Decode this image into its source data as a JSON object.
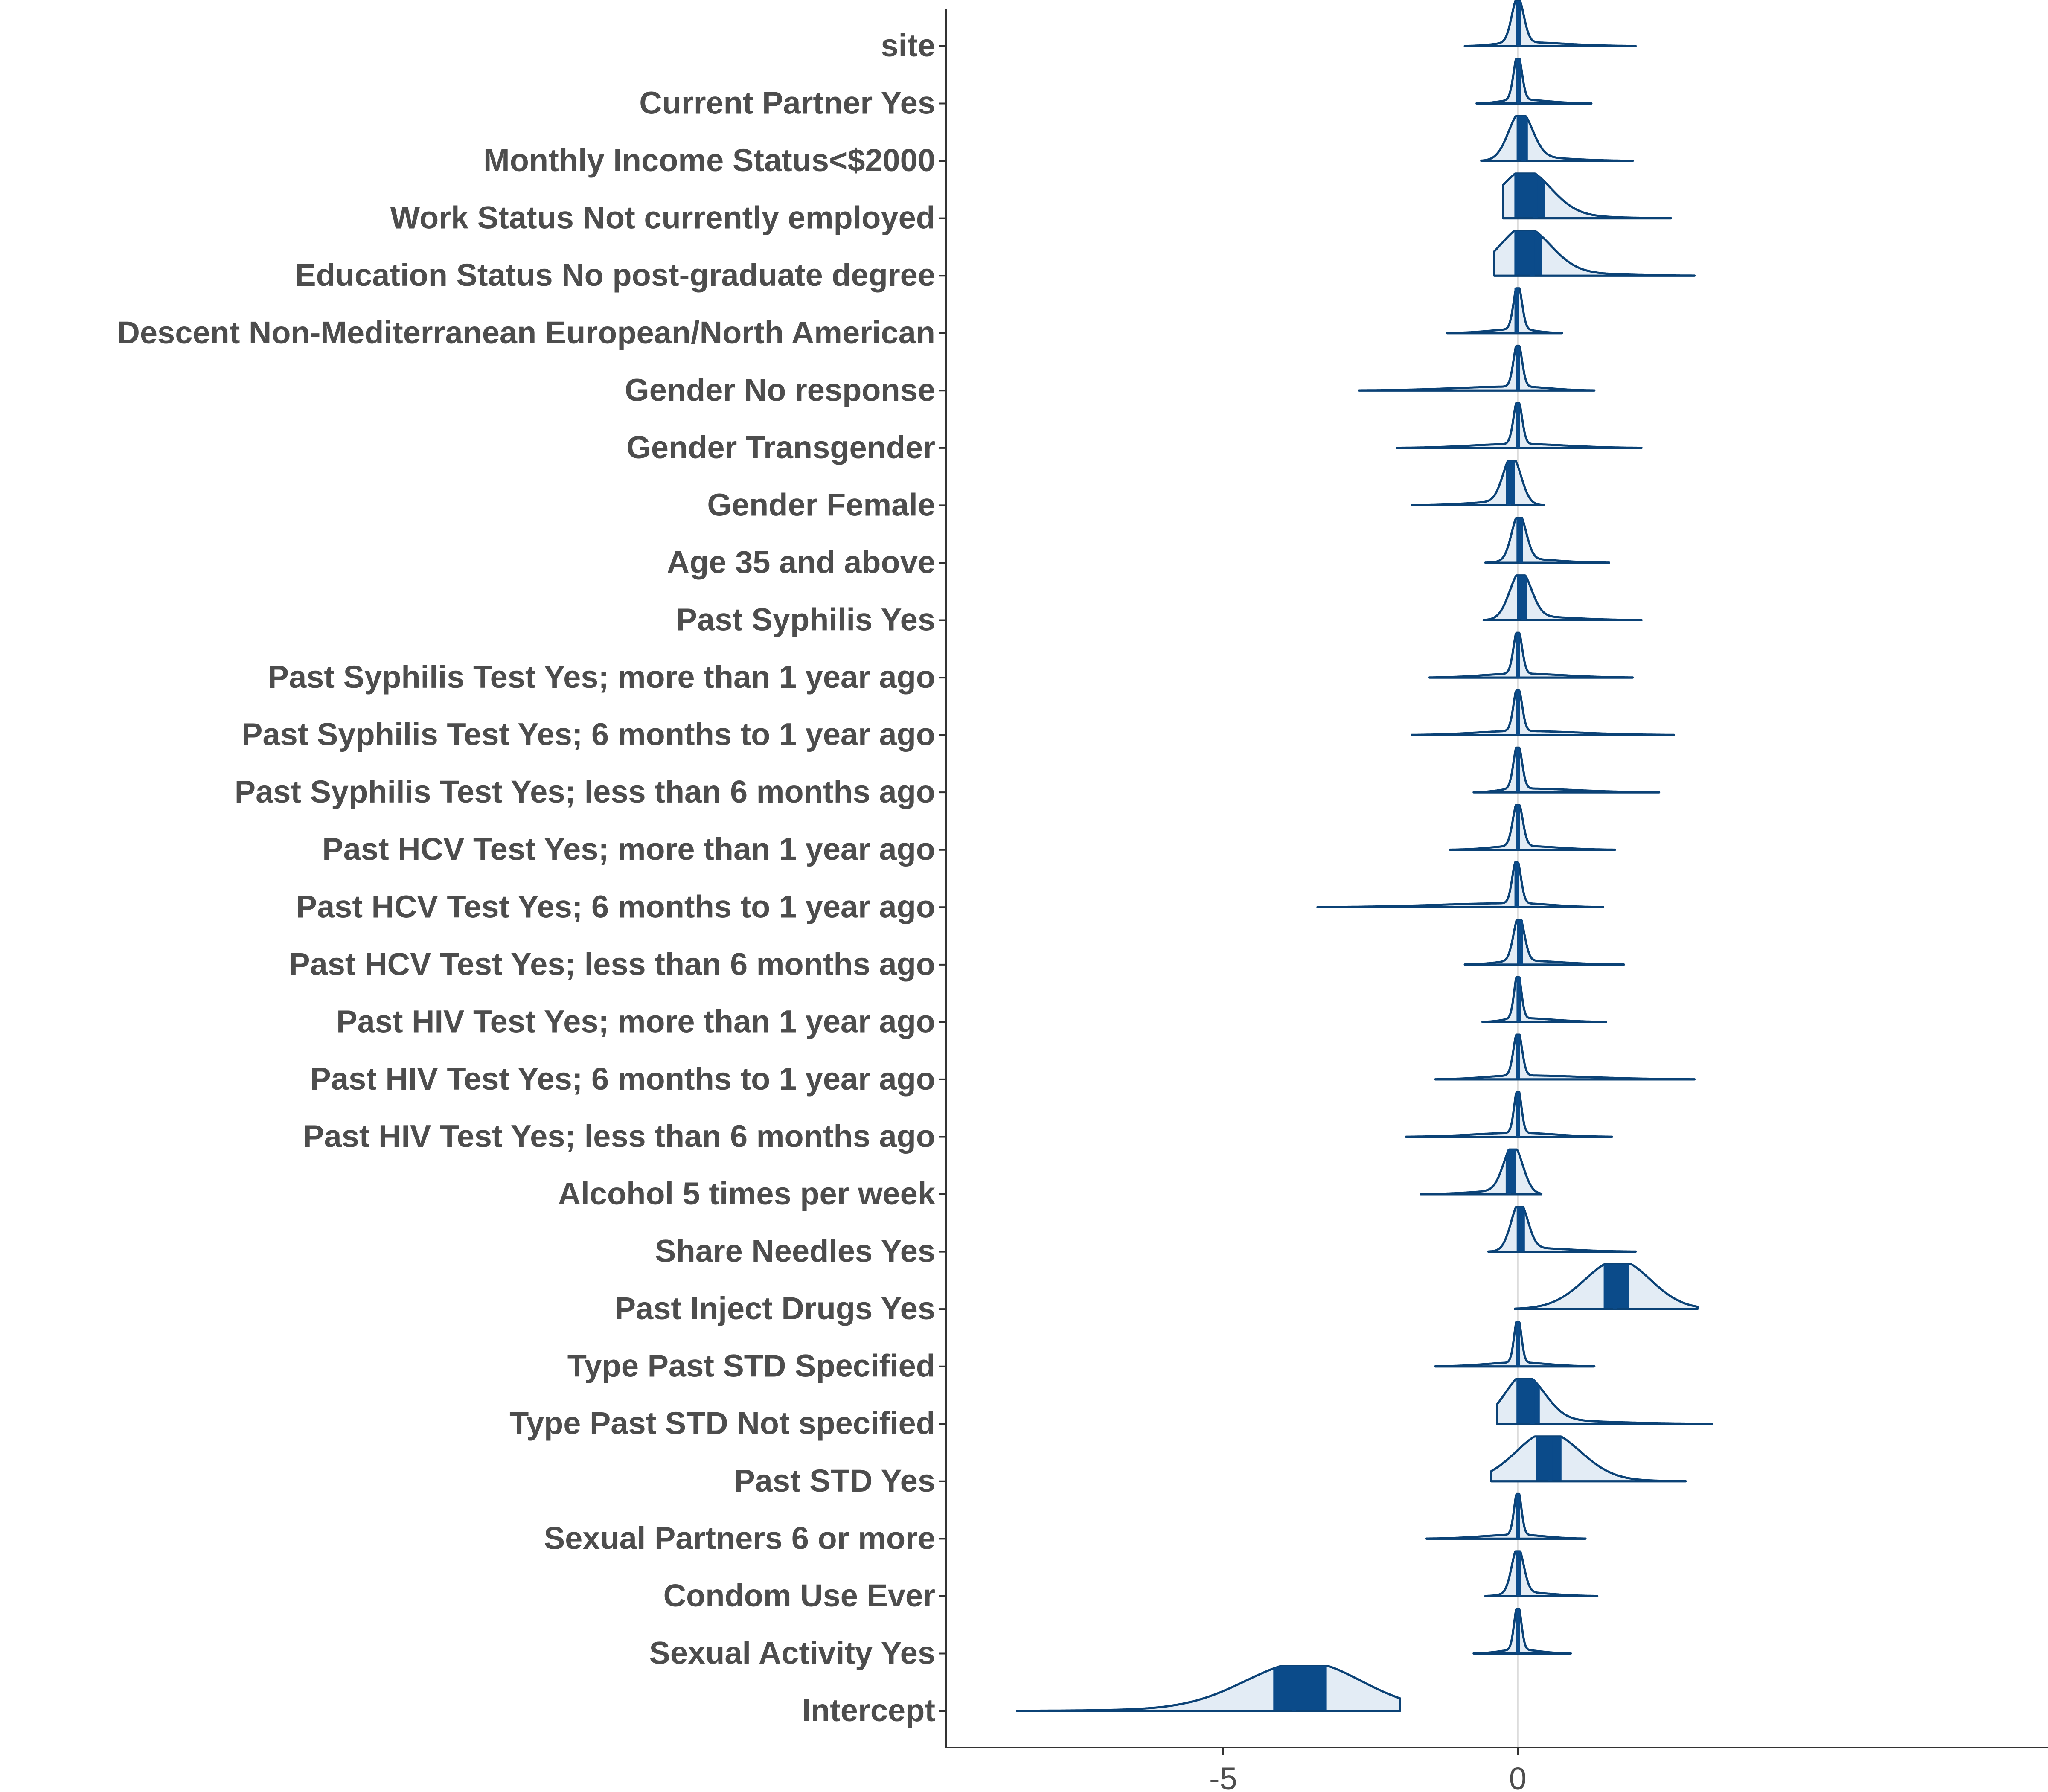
{
  "chart_data": {
    "type": "ridgeline",
    "title": "",
    "xlabel": "",
    "ylabel": "",
    "xlim": [
      -9.7,
      9.0
    ],
    "x_ticks": [
      -5,
      0
    ],
    "x_tick_labels": [
      "-5",
      "0"
    ],
    "reference_line_x": 0,
    "grid": false,
    "colors": {
      "outline": "#0b4276",
      "fill_light": "#e3ecf5",
      "fill_dark": "#0b4b8a",
      "label": "#4d4d4d"
    },
    "series": [
      {
        "label": "site",
        "min": -0.9,
        "max": 2.0,
        "mode": 0.0,
        "median": 0.02,
        "sd": 0.1
      },
      {
        "label": "Current Partner Yes",
        "min": -0.7,
        "max": 1.25,
        "mode": 0.0,
        "median": 0.02,
        "sd": 0.07
      },
      {
        "label": "Monthly Income Status<$2000",
        "min": -0.62,
        "max": 1.95,
        "mode": 0.05,
        "median": 0.1,
        "sd": 0.2
      },
      {
        "label": "Work Status Not currently employed",
        "min": -0.25,
        "max": 2.6,
        "mode": 0.1,
        "median": 0.3,
        "sd": 0.45
      },
      {
        "label": "Education Status No post-graduate degree",
        "min": -0.4,
        "max": 3.0,
        "mode": 0.1,
        "median": 0.25,
        "sd": 0.45
      },
      {
        "label": "Descent Non-Mediterranean European/North American",
        "min": -1.2,
        "max": 0.75,
        "mode": 0.0,
        "median": -0.02,
        "sd": 0.07
      },
      {
        "label": "Gender No response",
        "min": -2.7,
        "max": 1.3,
        "mode": 0.0,
        "median": 0.0,
        "sd": 0.07
      },
      {
        "label": "Gender Transgender",
        "min": -2.05,
        "max": 2.1,
        "mode": 0.0,
        "median": 0.0,
        "sd": 0.07
      },
      {
        "label": "Gender Female",
        "min": -1.8,
        "max": 0.45,
        "mode": -0.1,
        "median": -0.15,
        "sd": 0.15
      },
      {
        "label": "Age 35 and above",
        "min": -0.55,
        "max": 1.55,
        "mode": 0.02,
        "median": 0.05,
        "sd": 0.12
      },
      {
        "label": "Past Syphilis Yes",
        "min": -0.58,
        "max": 2.1,
        "mode": 0.05,
        "median": 0.1,
        "sd": 0.18
      },
      {
        "label": "Past Syphilis Test Yes; more than  1 year ago",
        "min": -1.5,
        "max": 1.95,
        "mode": 0.0,
        "median": 0.0,
        "sd": 0.07
      },
      {
        "label": "Past Syphilis Test Yes;  6 months to  1 year ago",
        "min": -1.8,
        "max": 2.65,
        "mode": 0.0,
        "median": 0.0,
        "sd": 0.07
      },
      {
        "label": "Past Syphilis Test Yes; less than  6 months ago",
        "min": -0.75,
        "max": 2.4,
        "mode": 0.0,
        "median": 0.0,
        "sd": 0.07
      },
      {
        "label": "Past HCV Test Yes; more than  1 year ago",
        "min": -1.15,
        "max": 1.65,
        "mode": 0.0,
        "median": 0.0,
        "sd": 0.08
      },
      {
        "label": "Past HCV Test Yes;  6 months to  1 year ago",
        "min": -3.4,
        "max": 1.45,
        "mode": -0.02,
        "median": -0.02,
        "sd": 0.07
      },
      {
        "label": "Past HCV Test Yes; less than  6 months ago",
        "min": -0.9,
        "max": 1.8,
        "mode": 0.02,
        "median": 0.05,
        "sd": 0.09
      },
      {
        "label": "Past HIV Test Yes; more than  1 year ago",
        "min": -0.6,
        "max": 1.5,
        "mode": 0.0,
        "median": 0.02,
        "sd": 0.06
      },
      {
        "label": "Past HIV Test Yes;  6 months to  1 year ago",
        "min": -1.4,
        "max": 3.0,
        "mode": 0.0,
        "median": 0.0,
        "sd": 0.07
      },
      {
        "label": "Past HIV Test Yes; less than  6 months ago",
        "min": -1.9,
        "max": 1.6,
        "mode": 0.0,
        "median": 0.0,
        "sd": 0.06
      },
      {
        "label": "Alcohol 5 times per week",
        "min": -1.65,
        "max": 0.4,
        "mode": -0.08,
        "median": -0.15,
        "sd": 0.16
      },
      {
        "label": "Share Needles Yes",
        "min": -0.5,
        "max": 2.0,
        "mode": 0.03,
        "median": 0.07,
        "sd": 0.14
      },
      {
        "label": "Past Inject Drugs Yes",
        "min": -0.05,
        "max": 3.05,
        "mode": 1.7,
        "median": 1.65,
        "sd": 0.55
      },
      {
        "label": "Type Past STD Specified",
        "min": -1.4,
        "max": 1.3,
        "mode": 0.0,
        "median": 0.0,
        "sd": 0.06
      },
      {
        "label": "Type Past STD Not specified",
        "min": -0.35,
        "max": 3.3,
        "mode": 0.1,
        "median": 0.25,
        "sd": 0.35
      },
      {
        "label": "Past STD Yes",
        "min": -0.45,
        "max": 2.85,
        "mode": 0.5,
        "median": 0.55,
        "sd": 0.55
      },
      {
        "label": "Sexual Partners 6 or more",
        "min": -1.55,
        "max": 1.15,
        "mode": 0.0,
        "median": 0.0,
        "sd": 0.06
      },
      {
        "label": "Condom Use Ever",
        "min": -0.55,
        "max": 1.35,
        "mode": 0.0,
        "median": 0.02,
        "sd": 0.1
      },
      {
        "label": "Sexual Activity Yes",
        "min": -0.75,
        "max": 0.9,
        "mode": 0.0,
        "median": 0.0,
        "sd": 0.06
      },
      {
        "label": "Intercept",
        "min": -8.5,
        "max": -2.0,
        "mode": -3.6,
        "median": -3.8,
        "sd": 1.0
      }
    ]
  }
}
